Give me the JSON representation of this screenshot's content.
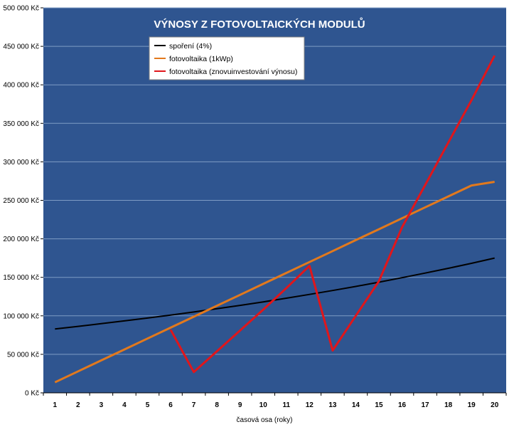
{
  "chart_data": {
    "type": "line",
    "title": "VÝNOSY Z FOTOVOLTAICKÝCH  MODULŮ",
    "xlabel": "časová osa (roky)",
    "ylabel": "",
    "x": [
      1,
      2,
      3,
      4,
      5,
      6,
      7,
      8,
      9,
      10,
      11,
      12,
      13,
      14,
      15,
      16,
      17,
      18,
      19,
      20
    ],
    "ylim": [
      0,
      500000
    ],
    "y_ticks": [
      0,
      50000,
      100000,
      150000,
      200000,
      250000,
      300000,
      350000,
      400000,
      450000,
      500000
    ],
    "y_tick_labels": [
      "0 Kč",
      "50 000 Kč",
      "100 000 Kč",
      "150 000 Kč",
      "200 000 Kč",
      "250 000 Kč",
      "300 000 Kč",
      "350 000 Kč",
      "400 000 Kč",
      "450 000 Kč",
      "500 000 Kč"
    ],
    "grid": true,
    "legend_position": "top-center",
    "plot_background": "#2f5590",
    "series": [
      {
        "name": "spoření (4%)",
        "color": "#000000",
        "values": [
          83000,
          86300,
          89800,
          93400,
          97100,
          101000,
          105000,
          109200,
          113600,
          118100,
          122900,
          127800,
          132900,
          138200,
          143700,
          149500,
          155500,
          161700,
          168200,
          175000
        ]
      },
      {
        "name": "fotovoltaika (1kWp)",
        "color": "#e2791d",
        "values": [
          13700,
          27900,
          42100,
          56300,
          70500,
          84700,
          98900,
          113100,
          127300,
          141500,
          155700,
          169900,
          184100,
          198300,
          212500,
          226700,
          240900,
          255100,
          269300,
          274000
        ]
      },
      {
        "name": "fotovoltaika (znovuinvestování výnosu)",
        "color": "#e0161b",
        "values": [
          null,
          null,
          null,
          null,
          null,
          82000,
          27000,
          54000,
          81000,
          108000,
          136000,
          165000,
          55000,
          100000,
          145000,
          215000,
          270000,
          325000,
          380000,
          438000
        ]
      }
    ]
  }
}
